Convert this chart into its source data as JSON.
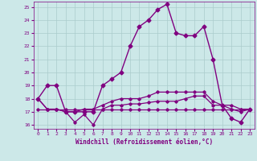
{
  "hours": [
    0,
    1,
    2,
    3,
    4,
    5,
    6,
    7,
    8,
    9,
    10,
    11,
    12,
    13,
    14,
    15,
    16,
    17,
    18,
    19,
    20,
    21,
    22,
    23
  ],
  "temp": [
    18,
    19,
    19,
    17,
    17,
    17,
    17,
    19,
    19.5,
    20,
    22,
    23.5,
    24,
    24.8,
    25.2,
    23,
    22.8,
    22.8,
    23.5,
    21,
    17.5,
    16.5,
    16.2,
    17.2
  ],
  "windchill_flat": [
    17.2,
    17.2,
    17.2,
    17.2,
    17.2,
    17.2,
    17.2,
    17.2,
    17.2,
    17.2,
    17.2,
    17.2,
    17.2,
    17.2,
    17.2,
    17.2,
    17.2,
    17.2,
    17.2,
    17.2,
    17.2,
    17.2,
    17.2,
    17.2
  ],
  "windchill2": [
    18,
    17.2,
    17.2,
    17.0,
    16.2,
    16.8,
    16.0,
    17.2,
    17.5,
    17.5,
    17.6,
    17.6,
    17.7,
    17.8,
    17.8,
    17.8,
    18.0,
    18.2,
    18.2,
    17.5,
    17.5,
    17.2,
    17.0,
    17.2
  ],
  "windchill3": [
    18,
    17.2,
    17.2,
    17.0,
    17.0,
    17.2,
    17.2,
    17.5,
    17.8,
    18.0,
    18.0,
    18.0,
    18.2,
    18.5,
    18.5,
    18.5,
    18.5,
    18.5,
    18.5,
    17.8,
    17.5,
    17.5,
    17.2,
    17.2
  ],
  "line_color": "#800080",
  "bg_color": "#cce8e8",
  "grid_color": "#aacccc",
  "text_color": "#800080",
  "xlabel": "Windchill (Refroidissement éolien,°C)",
  "ylim": [
    15.7,
    25.4
  ],
  "yticks": [
    16,
    17,
    18,
    19,
    20,
    21,
    22,
    23,
    24,
    25
  ],
  "xticks": [
    0,
    1,
    2,
    3,
    4,
    5,
    6,
    7,
    8,
    9,
    10,
    11,
    12,
    13,
    14,
    15,
    16,
    17,
    18,
    19,
    20,
    21,
    22,
    23
  ]
}
